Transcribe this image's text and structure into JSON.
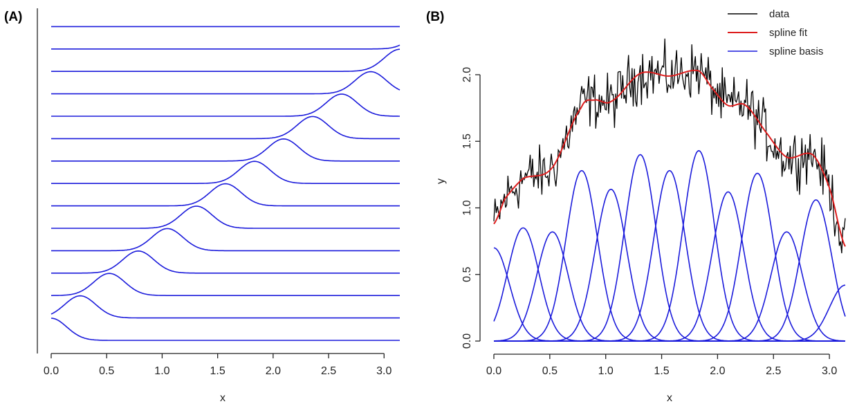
{
  "chart_data": [
    {
      "type": "line",
      "panel": "(A)",
      "xlabel": "x",
      "ylabel": "",
      "xlim": [
        0,
        3.14159
      ],
      "xticks": [
        "0.0",
        "0.5",
        "1.0",
        "1.5",
        "2.0",
        "2.5",
        "3.0"
      ],
      "xtick_values": [
        0,
        0.5,
        1.0,
        1.5,
        2.0,
        2.5,
        3.0
      ],
      "description_of_series": "stacked spline basis functions, offset vertically",
      "basis_count": 15,
      "basis_spacing": 0.2618,
      "basis_width": 0.14,
      "color": "#1a1adb"
    },
    {
      "type": "line",
      "panel": "(B)",
      "xlabel": "x",
      "ylabel": "y",
      "xlim": [
        0,
        3.14159
      ],
      "ylim": [
        -0.05,
        2.45
      ],
      "xticks": [
        "0.0",
        "0.5",
        "1.0",
        "1.5",
        "2.0",
        "2.5",
        "3.0"
      ],
      "xtick_values": [
        0,
        0.5,
        1.0,
        1.5,
        2.0,
        2.5,
        3.0
      ],
      "yticks": [
        "0.0",
        "0.5",
        "1.0",
        "1.5",
        "2.0"
      ],
      "ytick_values": [
        0,
        0.5,
        1.0,
        1.5,
        2.0
      ],
      "legend_position": "top-right",
      "series": [
        {
          "name": "data",
          "color": "#000000"
        },
        {
          "name": "spline fit",
          "color": "#dd1c1c"
        },
        {
          "name": "spline basis",
          "color": "#1a1adb"
        }
      ],
      "spline_fit_knots": {
        "x": [
          0.0,
          0.1,
          0.26,
          0.52,
          0.78,
          0.9,
          1.05,
          1.31,
          1.57,
          1.83,
          1.95,
          2.09,
          2.25,
          2.45,
          2.62,
          2.85,
          3.0,
          3.1416
        ],
        "y": [
          0.88,
          1.07,
          1.22,
          1.3,
          1.75,
          1.81,
          1.8,
          2.01,
          1.99,
          2.03,
          1.9,
          1.77,
          1.77,
          1.55,
          1.38,
          1.4,
          1.15,
          0.71
        ]
      },
      "basis_peaks": [
        0.7,
        0.85,
        0.82,
        1.28,
        1.14,
        1.4,
        1.28,
        1.43,
        1.12,
        1.26,
        0.82,
        1.06,
        0.42
      ],
      "basis_centers": [
        0.0,
        0.2618,
        0.5236,
        0.7854,
        1.0472,
        1.309,
        1.5708,
        1.8326,
        2.0944,
        2.3562,
        2.618,
        2.8798,
        3.1416
      ],
      "basis_width": 0.14,
      "noise_amplitude": 0.13,
      "noise_points": 300
    }
  ]
}
